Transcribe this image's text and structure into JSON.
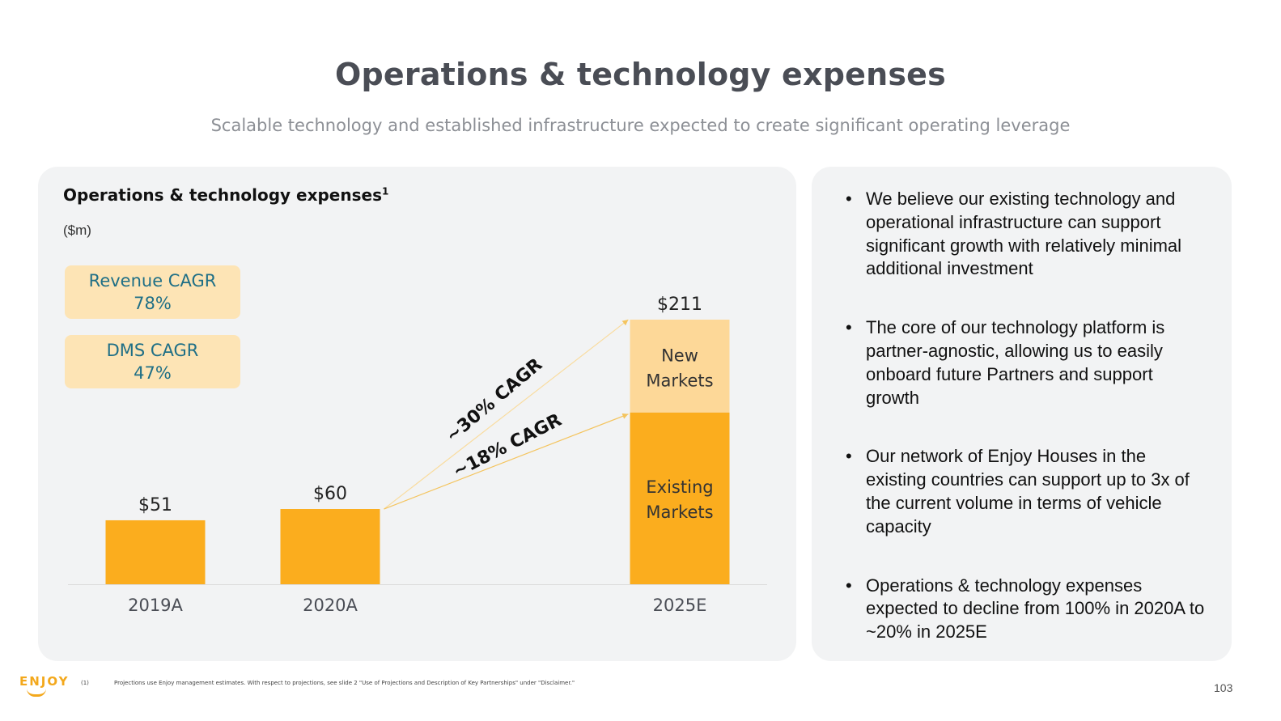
{
  "slide": {
    "title": "Operations & technology expenses",
    "subtitle": "Scalable technology and established infrastructure expected to create significant operating leverage",
    "page_number": "103",
    "logo_text": "ENJOY",
    "footnote_mark": "(1)",
    "footnote": "Projections use Enjoy management estimates. With respect to projections, see slide 2 \"Use of Projections and Description of Key Partnerships\" under \"Disclaimer.\""
  },
  "cagr_boxes": [
    {
      "label": "Revenue CAGR",
      "value": "78%"
    },
    {
      "label": "DMS CAGR",
      "value": "47%"
    }
  ],
  "bullets": [
    "We believe our existing technology and operational infrastructure can support significant growth with relatively minimal additional investment",
    "The core of our technology platform is partner-agnostic, allowing us to easily onboard future Partners and support growth",
    "Our network of Enjoy Houses in the existing countries can support up to 3x of the current volume in terms of vehicle capacity",
    "Operations & technology expenses expected to decline from 100% in 2020A to ~20% in 2025E"
  ],
  "chart_data": {
    "type": "bar",
    "title": "Operations & technology expenses",
    "title_footnote": "1",
    "units": "($m)",
    "categories": [
      "2019A",
      "2020A",
      "2025E"
    ],
    "series": [
      {
        "name": "Existing Markets",
        "values": [
          51,
          60,
          137
        ]
      },
      {
        "name": "New Markets",
        "values": [
          0,
          0,
          74
        ]
      }
    ],
    "totals": [
      51,
      60,
      211
    ],
    "total_labels": [
      "$51",
      "$60",
      "$211"
    ],
    "segment_labels": {
      "existing": [
        "Existing",
        "Markets"
      ],
      "new": [
        "New",
        "Markets"
      ]
    },
    "annotations": [
      {
        "text": "~30% CAGR",
        "from": "2020A",
        "to": "2025E total"
      },
      {
        "text": "~18% CAGR",
        "from": "2020A",
        "to": "2025E Existing Markets"
      }
    ],
    "ylim": [
      0,
      211
    ],
    "colors": {
      "existing": "#fbad1e",
      "new": "#fdd898",
      "arrow": "#f4c45e",
      "label": "#333333"
    }
  }
}
